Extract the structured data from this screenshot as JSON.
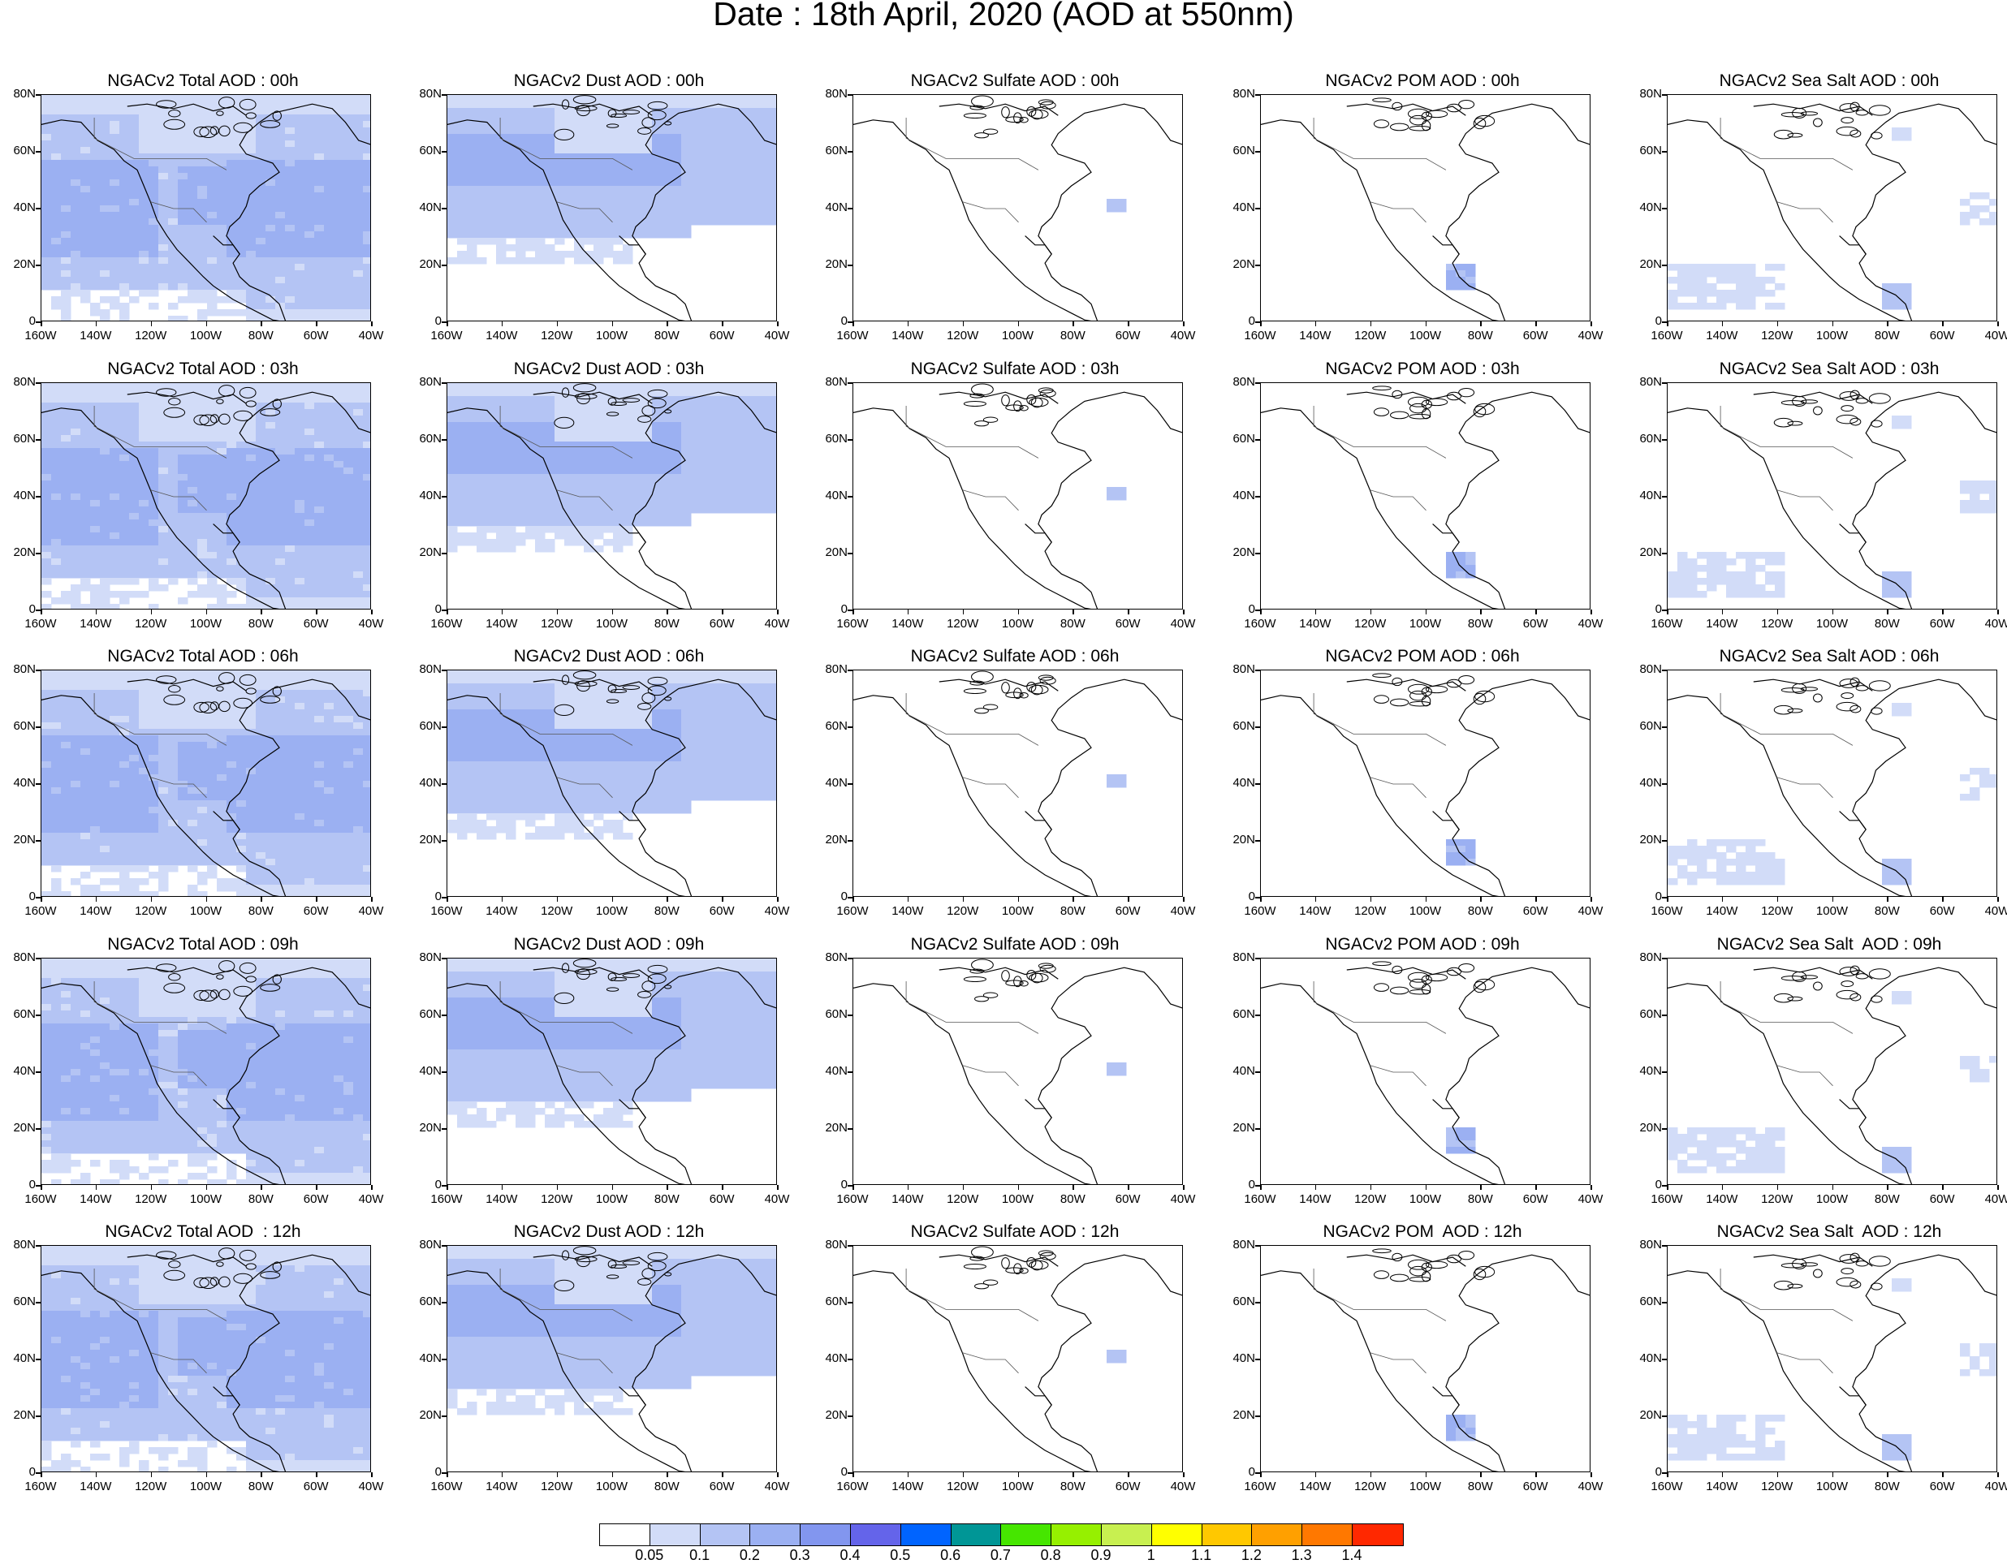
{
  "title": "Date : 18th April, 2020 (AOD at 550nm)",
  "y_axis_labels": [
    "80N",
    "60N",
    "40N",
    "20N",
    "0"
  ],
  "x_axis_labels": [
    "160W",
    "140W",
    "120W",
    "100W",
    "80W",
    "60W",
    "40W"
  ],
  "panels": [
    [
      {
        "title": "NGACv2 Total AOD : 00h",
        "field": "total",
        "level": 3
      },
      {
        "title": "NGACv2 Dust AOD : 00h",
        "field": "dust",
        "level": 3
      },
      {
        "title": "NGACv2 Sulfate AOD : 00h",
        "field": "sulfate",
        "level": 0
      },
      {
        "title": "NGACv2 POM AOD : 00h",
        "field": "pom",
        "level": 0
      },
      {
        "title": "NGACv2 Sea Salt AOD : 00h",
        "field": "seasalt",
        "level": 1
      }
    ],
    [
      {
        "title": "NGACv2 Total AOD : 03h",
        "field": "total",
        "level": 3
      },
      {
        "title": "NGACv2 Dust AOD : 03h",
        "field": "dust",
        "level": 3
      },
      {
        "title": "NGACv2 Sulfate AOD : 03h",
        "field": "sulfate",
        "level": 0
      },
      {
        "title": "NGACv2 POM AOD : 03h",
        "field": "pom",
        "level": 0
      },
      {
        "title": "NGACv2 Sea Salt AOD : 03h",
        "field": "seasalt",
        "level": 1
      }
    ],
    [
      {
        "title": "NGACv2 Total AOD : 06h",
        "field": "total",
        "level": 3
      },
      {
        "title": "NGACv2 Dust AOD : 06h",
        "field": "dust",
        "level": 3
      },
      {
        "title": "NGACv2 Sulfate AOD : 06h",
        "field": "sulfate",
        "level": 0
      },
      {
        "title": "NGACv2 POM AOD : 06h",
        "field": "pom",
        "level": 0
      },
      {
        "title": "NGACv2 Sea Salt AOD : 06h",
        "field": "seasalt",
        "level": 1
      }
    ],
    [
      {
        "title": "NGACv2 Total AOD : 09h",
        "field": "total",
        "level": 3
      },
      {
        "title": "NGACv2 Dust AOD : 09h",
        "field": "dust",
        "level": 3
      },
      {
        "title": "NGACv2 Sulfate AOD : 09h",
        "field": "sulfate",
        "level": 0
      },
      {
        "title": "NGACv2 POM AOD : 09h",
        "field": "pom",
        "level": 0
      },
      {
        "title": "NGACv2 Sea Salt  AOD : 09h",
        "field": "seasalt",
        "level": 1
      }
    ],
    [
      {
        "title": "NGACv2 Total AOD  : 12h",
        "field": "total",
        "level": 3
      },
      {
        "title": "NGACv2 Dust AOD : 12h",
        "field": "dust",
        "level": 3
      },
      {
        "title": "NGACv2 Sulfate AOD : 12h",
        "field": "sulfate",
        "level": 0
      },
      {
        "title": "NGACv2 POM  AOD : 12h",
        "field": "pom",
        "level": 0
      },
      {
        "title": "NGACv2 Sea Salt  AOD : 12h",
        "field": "seasalt",
        "level": 1
      }
    ]
  ],
  "colorbar": {
    "colors": [
      "#ffffff",
      "#d2dcf8",
      "#b4c4f4",
      "#9bb0f2",
      "#8296ef",
      "#6464ea",
      "#0064ff",
      "#009696",
      "#46e600",
      "#96f000",
      "#c8f050",
      "#ffff00",
      "#ffc800",
      "#ffa000",
      "#ff7800",
      "#ff2800"
    ],
    "labels": [
      "0.05",
      "0.1",
      "0.2",
      "0.3",
      "0.4",
      "0.5",
      "0.6",
      "0.7",
      "0.8",
      "0.9",
      "1",
      "1.1",
      "1.2",
      "1.3",
      "1.4"
    ]
  }
}
